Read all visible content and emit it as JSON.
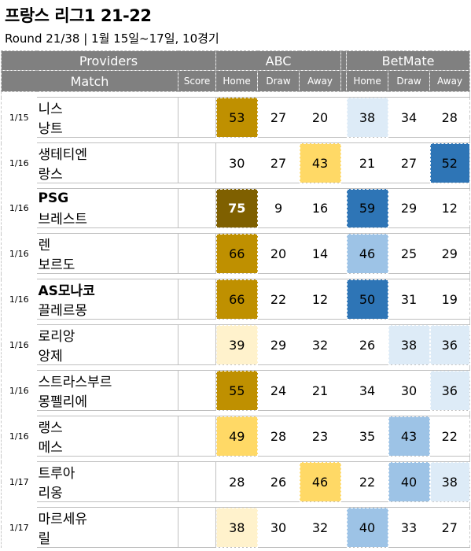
{
  "title": "프랑스 리그1 21-22",
  "subtitle": "Round 21/38  | 1월 15일~17일, 10경기",
  "header": {
    "providers": "Providers",
    "abc": "ABC",
    "betmate": "BetMate",
    "match": "Match",
    "score": "Score",
    "home": "Home",
    "draw": "Draw",
    "away": "Away"
  },
  "colors": {
    "header_bg": "#808080",
    "gold_dark": "#7f6000",
    "gold": "#bf9000",
    "yellow": "#ffd966",
    "yellow_light": "#fff2cc",
    "blue_dark": "#2e75b6",
    "blue": "#9dc3e6",
    "blue_light": "#ddebf7"
  },
  "matches": [
    {
      "date": "1/15",
      "home": "니스",
      "away": "낭트",
      "score": "",
      "abc": {
        "home": "53",
        "draw": "27",
        "away": "20"
      },
      "betmate": {
        "home": "38",
        "draw": "34",
        "away": "28"
      }
    },
    {
      "date": "1/16",
      "home": "생테티엔",
      "away": "랑스",
      "score": "",
      "abc": {
        "home": "30",
        "draw": "27",
        "away": "43"
      },
      "betmate": {
        "home": "21",
        "draw": "27",
        "away": "52"
      }
    },
    {
      "date": "1/16",
      "home": "PSG",
      "away": "브레스트",
      "score": "",
      "abc": {
        "home": "75",
        "draw": "9",
        "away": "16"
      },
      "betmate": {
        "home": "59",
        "draw": "29",
        "away": "12"
      }
    },
    {
      "date": "1/16",
      "home": "렌",
      "away": "보르도",
      "score": "",
      "abc": {
        "home": "66",
        "draw": "20",
        "away": "14"
      },
      "betmate": {
        "home": "46",
        "draw": "25",
        "away": "29"
      }
    },
    {
      "date": "1/16",
      "home": "AS모나코",
      "away": "끌레르몽",
      "score": "",
      "abc": {
        "home": "66",
        "draw": "22",
        "away": "12"
      },
      "betmate": {
        "home": "50",
        "draw": "31",
        "away": "19"
      }
    },
    {
      "date": "1/16",
      "home": "로리앙",
      "away": "앙제",
      "score": "",
      "abc": {
        "home": "39",
        "draw": "29",
        "away": "32"
      },
      "betmate": {
        "home": "26",
        "draw": "38",
        "away": "36"
      }
    },
    {
      "date": "1/16",
      "home": "스트라스부르",
      "away": "몽펠리에",
      "score": "",
      "abc": {
        "home": "55",
        "draw": "24",
        "away": "21"
      },
      "betmate": {
        "home": "34",
        "draw": "30",
        "away": "36"
      }
    },
    {
      "date": "1/16",
      "home": "랭스",
      "away": "메스",
      "score": "",
      "abc": {
        "home": "49",
        "draw": "28",
        "away": "23"
      },
      "betmate": {
        "home": "35",
        "draw": "43",
        "away": "22"
      }
    },
    {
      "date": "1/17",
      "home": "트루아",
      "away": "리옹",
      "score": "",
      "abc": {
        "home": "28",
        "draw": "26",
        "away": "46"
      },
      "betmate": {
        "home": "22",
        "draw": "40",
        "away": "38"
      }
    },
    {
      "date": "1/17",
      "home": "마르세유",
      "away": "릴",
      "score": "",
      "abc": {
        "home": "38",
        "draw": "30",
        "away": "32"
      },
      "betmate": {
        "home": "40",
        "draw": "33",
        "away": "27"
      }
    }
  ]
}
